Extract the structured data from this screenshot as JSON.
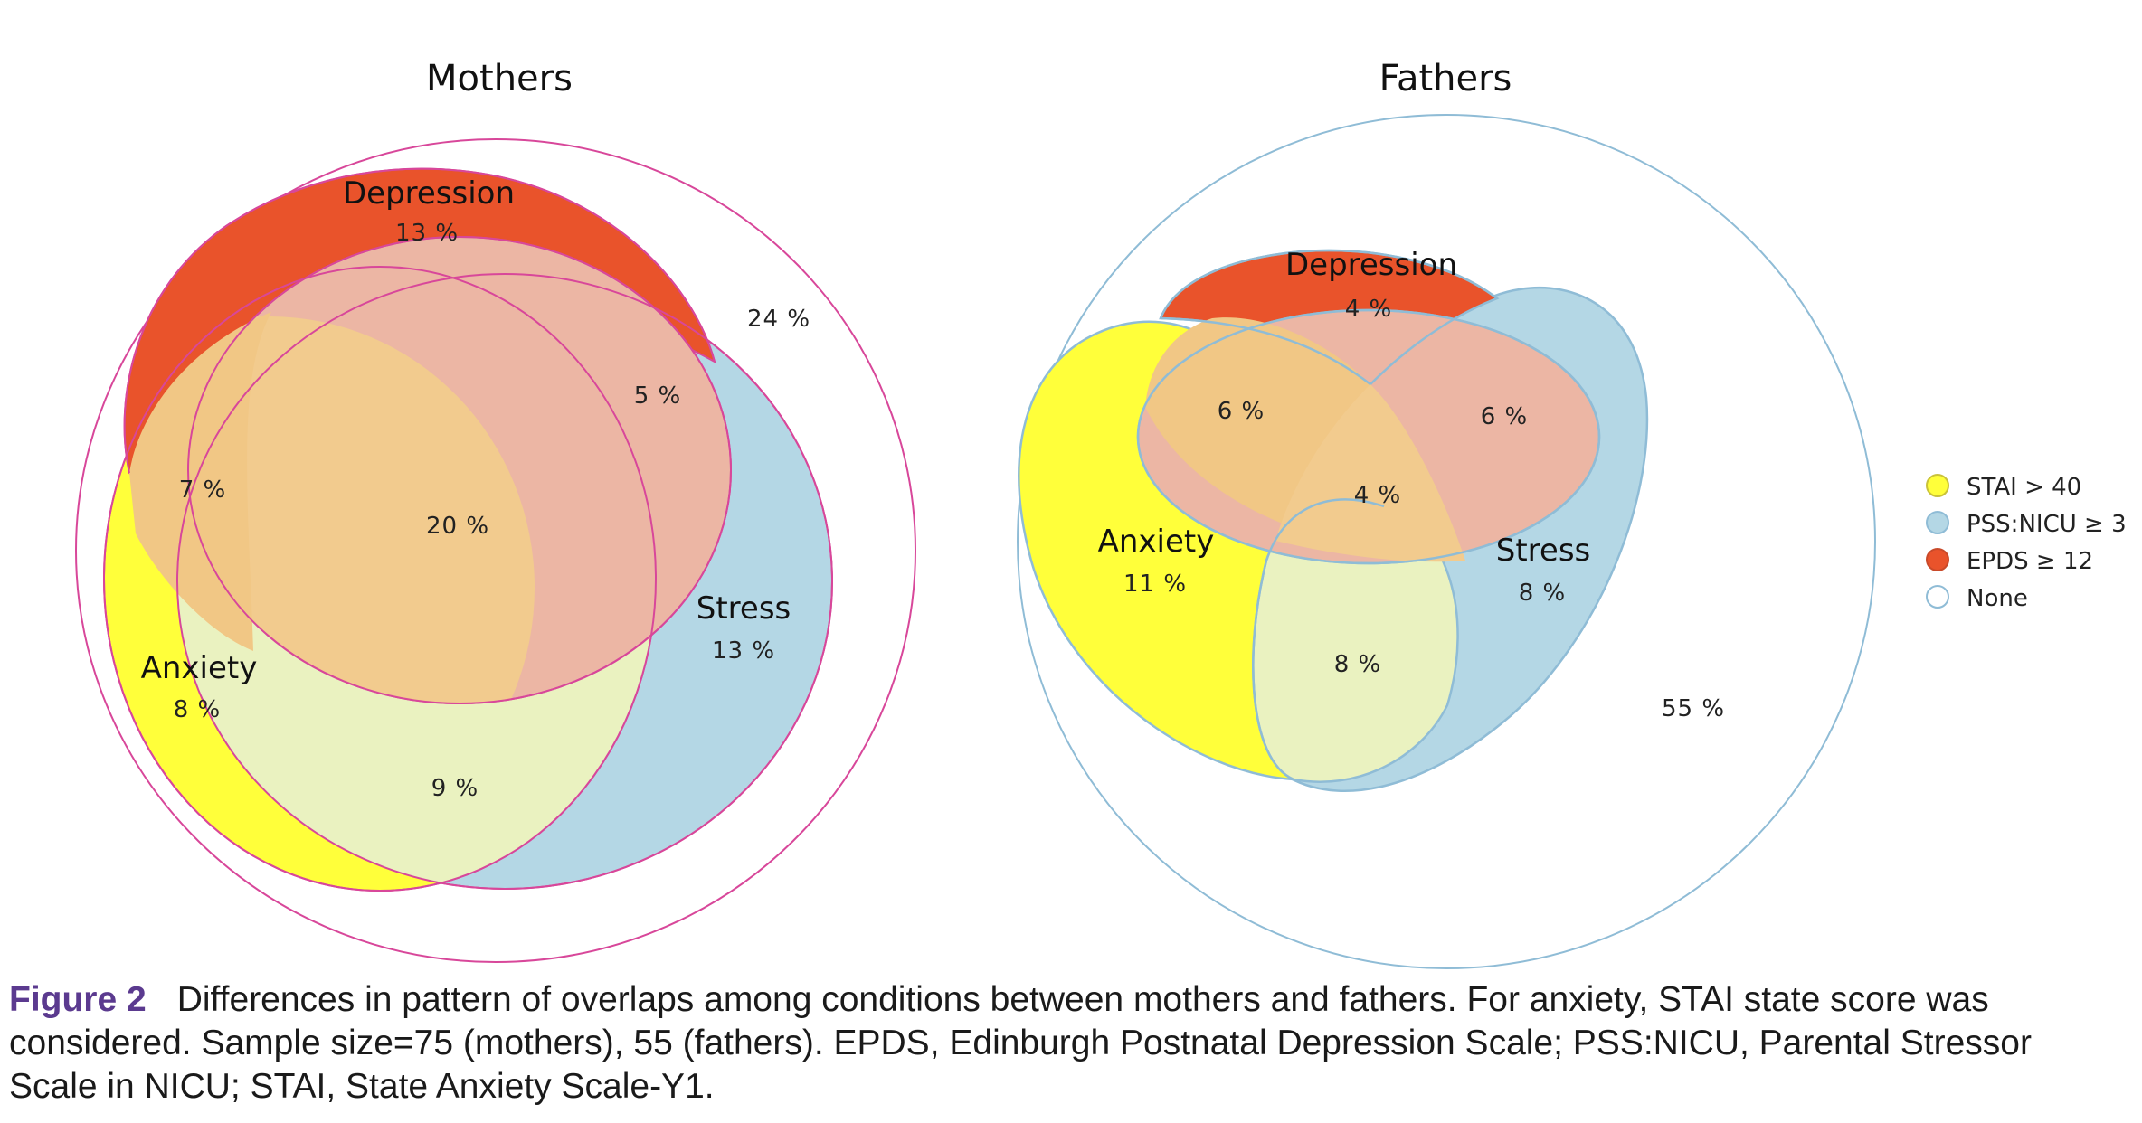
{
  "colors": {
    "stai": "#ffff3a",
    "pss": "#b4d7e5",
    "epds": "#e9532b",
    "none": "#ffffff",
    "overlap_stai_epds": "#f1c785",
    "overlap_all": "#f2cb8e",
    "overlap_epds_pss": "#ecb6a4",
    "overlap_stai_pss": "#eaf2c0",
    "mothers_stroke": "#d8479a",
    "fathers_stroke": "#8fbcd6",
    "caption_label": "#5b3a8f"
  },
  "mothers": {
    "title": "Mothers",
    "depression": {
      "label": "Depression",
      "pct": "13 %"
    },
    "anxiety": {
      "label": "Anxiety",
      "pct": "8 %"
    },
    "stress": {
      "label": "Stress",
      "pct": "13 %"
    },
    "dep_anx": "7 %",
    "dep_str": "5 %",
    "all_three": "20 %",
    "anx_str": "9 %",
    "none": "24 %"
  },
  "fathers": {
    "title": "Fathers",
    "depression": {
      "label": "Depression",
      "pct": "4 %"
    },
    "anxiety": {
      "label": "Anxiety",
      "pct": "11 %"
    },
    "stress": {
      "label": "Stress",
      "pct": "8 %"
    },
    "dep_anx": "6 %",
    "dep_str": "6 %",
    "all_three": "4 %",
    "anx_str": "8 %",
    "none": "55 %"
  },
  "legend": [
    {
      "label": "STAI > 40",
      "color": "#ffff3a",
      "stroke": "#c9c23a"
    },
    {
      "label": "PSS:NICU ≥ 3",
      "color": "#b4d7e5",
      "stroke": "#8fbcd6"
    },
    {
      "label": "EPDS ≥ 12",
      "color": "#e9532b",
      "stroke": "#c94a2a"
    },
    {
      "label": "None",
      "color": "#ffffff",
      "stroke": "#8fbcd6"
    }
  ],
  "caption": {
    "label": "Figure 2",
    "text": "Differences in pattern of overlaps among conditions between mothers and fathers. For anxiety, STAI state score was considered. Sample size=75 (mothers), 55 (fathers). EPDS, Edinburgh Postnatal Depression Scale; PSS:NICU, Parental Stressor Scale in NICU; STAI, State Anxiety Scale-Y1."
  }
}
